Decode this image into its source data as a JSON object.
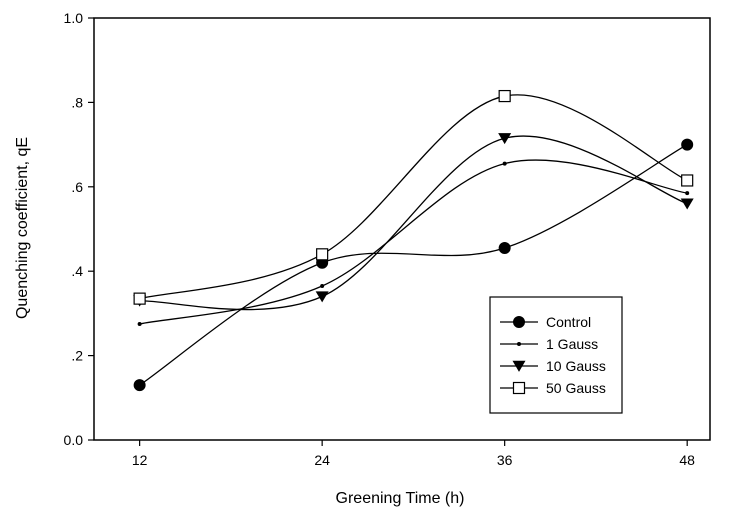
{
  "chart_data": {
    "type": "line",
    "title": "",
    "xlabel": "Greening Time (h)",
    "ylabel": "Quenching coefficient, qE",
    "x": [
      12,
      24,
      36,
      48
    ],
    "x_tick_labels": [
      "12",
      "24",
      "36",
      "48"
    ],
    "xlim": [
      9,
      49.5
    ],
    "ylim": [
      0,
      1.0
    ],
    "y_ticks": [
      0,
      0.2,
      0.4,
      0.6,
      0.8,
      1.0
    ],
    "y_tick_labels": [
      "0.0",
      ".2",
      ".4",
      ".6",
      ".8",
      "1.0"
    ],
    "grid": false,
    "legend_position": "bottom-right",
    "smooth": true,
    "series": [
      {
        "name": "Control",
        "marker": "filled-circle",
        "values": [
          0.13,
          0.42,
          0.455,
          0.7
        ]
      },
      {
        "name": "1 Gauss",
        "marker": "small-dot",
        "values": [
          0.275,
          0.365,
          0.655,
          0.585
        ]
      },
      {
        "name": "10 Gauss",
        "marker": "filled-triangle-down",
        "values": [
          0.33,
          0.34,
          0.715,
          0.56
        ]
      },
      {
        "name": "50 Gauss",
        "marker": "open-square",
        "values": [
          0.335,
          0.44,
          0.815,
          0.615
        ]
      }
    ]
  }
}
